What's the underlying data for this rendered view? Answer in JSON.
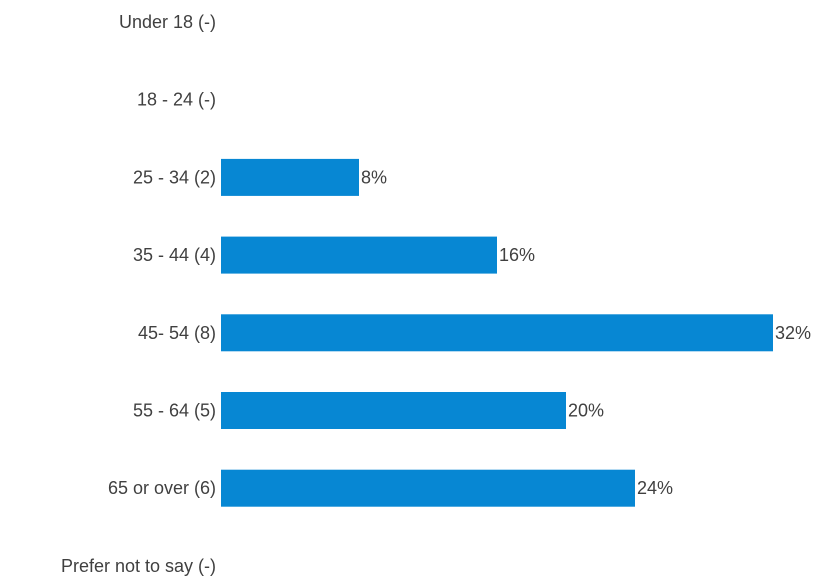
{
  "colors": {
    "bar": "#0787d3",
    "text": "#404040"
  },
  "chart_data": {
    "type": "bar",
    "orientation": "horizontal",
    "title": "",
    "xlabel": "",
    "ylabel": "",
    "grid": false,
    "legend": "none",
    "xlim": [
      0,
      32
    ],
    "categories": [
      "Under 18 (-)",
      "18 - 24 (-)",
      "25 - 34 (2)",
      "35 - 44 (4)",
      "45- 54 (8)",
      "55 - 64 (5)",
      "65 or over (6)",
      "Prefer not to say (-)"
    ],
    "values": [
      0,
      0,
      8,
      16,
      32,
      20,
      24,
      0
    ],
    "value_labels": [
      "",
      "",
      "8%",
      "16%",
      "32%",
      "20%",
      "24%",
      ""
    ]
  }
}
